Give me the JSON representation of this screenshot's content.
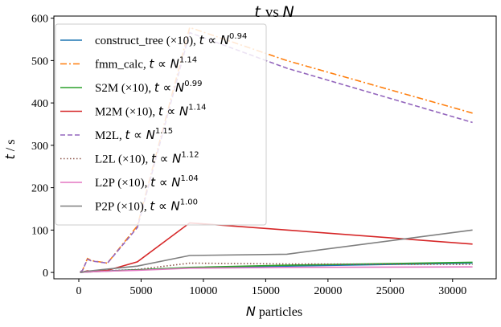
{
  "chart_data": {
    "type": "line",
    "title": "t vs N",
    "xlabel": "N particles",
    "ylabel": "t / s",
    "xlim": [
      -2000,
      33500
    ],
    "ylim": [
      -15,
      605
    ],
    "xticks": [
      0,
      5000,
      10000,
      15000,
      20000,
      25000,
      30000
    ],
    "yticks": [
      0,
      100,
      200,
      300,
      400,
      500,
      600
    ],
    "grid": false,
    "legend_position": "top-left",
    "x": [
      100,
      300,
      700,
      1000,
      2300,
      4700,
      8900,
      16700,
      31600
    ],
    "series": [
      {
        "name": "construct_tree (×10),  t ∝ N^0.94",
        "color": "#1f77b4",
        "dash": "solid",
        "values": [
          0.2,
          0.6,
          1.2,
          1.8,
          3.5,
          6.5,
          11,
          15,
          22
        ]
      },
      {
        "name": "fmm_calc,  t ∝ N^1.14",
        "color": "#ff7f0e",
        "dash": "dashdot",
        "values": [
          1,
          5,
          33,
          28,
          22,
          110,
          578,
          500,
          376
        ]
      },
      {
        "name": "S2M (×10),  t ∝ N^0.99",
        "color": "#2ca02c",
        "dash": "solid",
        "values": [
          0.2,
          0.5,
          1.2,
          1.5,
          3,
          6,
          12,
          17,
          24
        ]
      },
      {
        "name": "M2M (×10),  t ∝ N^1.14",
        "color": "#d62728",
        "dash": "solid",
        "values": [
          0.3,
          1,
          4,
          3,
          5,
          25,
          117,
          100,
          67
        ]
      },
      {
        "name": "M2L,  t ∝ N^1.15",
        "color": "#9467bd",
        "dash": "dashed",
        "values": [
          1,
          5,
          31,
          27,
          22,
          106,
          566,
          482,
          354
        ]
      },
      {
        "name": "L2L (×10),  t ∝ N^1.12",
        "color": "#8c564b",
        "dash": "dotted",
        "values": [
          0.2,
          0.5,
          1.5,
          1.5,
          4,
          7,
          22,
          20,
          19
        ]
      },
      {
        "name": "L2P (×10),  t ∝ N^1.04",
        "color": "#e377c2",
        "dash": "solid",
        "values": [
          0.2,
          0.5,
          1,
          1.5,
          3,
          5,
          10,
          12,
          13
        ]
      },
      {
        "name": "P2P (×10),  t ∝ N^1.00",
        "color": "#7f7f7f",
        "dash": "solid",
        "values": [
          0.3,
          1,
          3,
          4,
          8,
          15,
          40,
          43,
          100
        ]
      }
    ]
  }
}
